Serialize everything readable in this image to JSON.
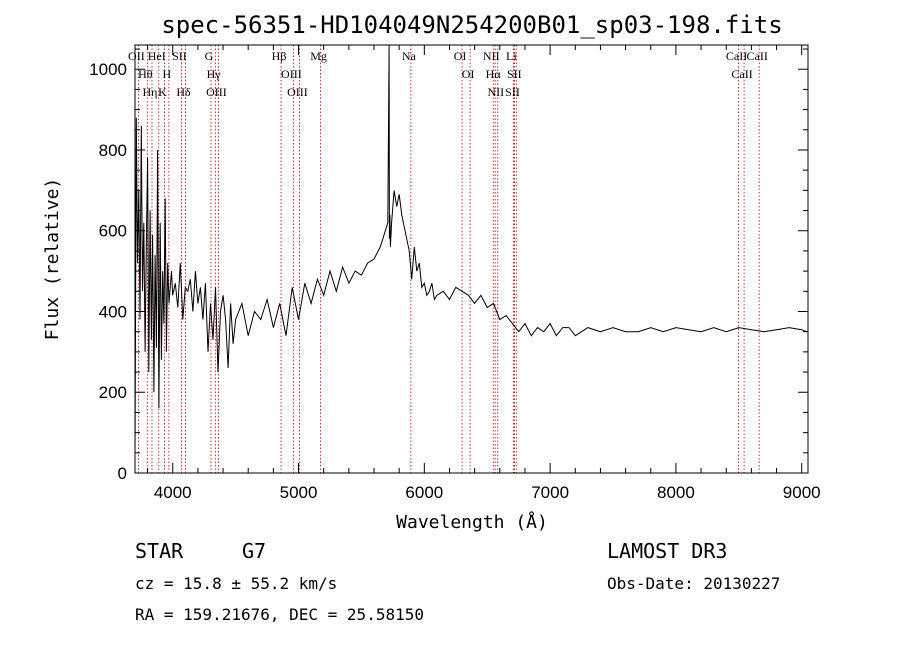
{
  "chart_data": {
    "type": "line",
    "title": "spec-56351-HD104049N254200B01_sp03-198.fits",
    "xlabel": "Wavelength (Å)",
    "ylabel": "Flux (relative)",
    "xlim": [
      3700,
      9050
    ],
    "ylim": [
      0,
      1060
    ],
    "xticks": [
      4000,
      5000,
      6000,
      7000,
      8000,
      9000
    ],
    "yticks": [
      0,
      200,
      400,
      600,
      800,
      1000
    ],
    "grid": false,
    "series": [
      {
        "x": [
          3700,
          3710,
          3720,
          3730,
          3740,
          3750,
          3760,
          3770,
          3780,
          3790,
          3800,
          3810,
          3820,
          3830,
          3840,
          3850,
          3860,
          3870,
          3880,
          3890,
          3900,
          3910,
          3920,
          3930,
          3940,
          3950,
          3960,
          3970,
          3980,
          3990,
          4000,
          4020,
          4040,
          4060,
          4080,
          4100,
          4120,
          4140,
          4160,
          4180,
          4200,
          4220,
          4240,
          4260,
          4280,
          4300,
          4320,
          4340,
          4360,
          4380,
          4400,
          4420,
          4440,
          4460,
          4480,
          4500,
          4550,
          4600,
          4650,
          4700,
          4750,
          4800,
          4850,
          4900,
          4950,
          5000,
          5050,
          5100,
          5150,
          5200,
          5250,
          5300,
          5350,
          5400,
          5450,
          5500,
          5550,
          5600,
          5650,
          5700,
          5710,
          5720,
          5722,
          5726,
          5730,
          5740,
          5760,
          5780,
          5800,
          5820,
          5840,
          5860,
          5880,
          5900,
          5920,
          5940,
          5960,
          5980,
          6000,
          6020,
          6040,
          6060,
          6080,
          6100,
          6150,
          6200,
          6250,
          6300,
          6350,
          6400,
          6450,
          6500,
          6550,
          6600,
          6650,
          6700,
          6750,
          6800,
          6850,
          6900,
          6950,
          7000,
          7050,
          7100,
          7150,
          7200,
          7300,
          7400,
          7500,
          7600,
          7700,
          7800,
          7900,
          8000,
          8100,
          8200,
          8300,
          8400,
          8500,
          8600,
          8700,
          8800,
          8900,
          9000,
          9040
        ],
        "y": [
          40,
          880,
          520,
          700,
          380,
          860,
          450,
          620,
          300,
          560,
          780,
          250,
          650,
          330,
          590,
          200,
          540,
          310,
          800,
          160,
          620,
          280,
          500,
          370,
          680,
          300,
          520,
          420,
          460,
          500,
          440,
          470,
          410,
          520,
          380,
          460,
          450,
          480,
          400,
          500,
          420,
          460,
          380,
          470,
          300,
          420,
          330,
          460,
          250,
          400,
          440,
          380,
          260,
          420,
          320,
          380,
          420,
          340,
          400,
          380,
          430,
          360,
          420,
          340,
          460,
          380,
          470,
          420,
          480,
          440,
          500,
          450,
          510,
          470,
          500,
          490,
          520,
          530,
          560,
          610,
          620,
          1060,
          580,
          640,
          560,
          620,
          700,
          660,
          690,
          640,
          610,
          580,
          550,
          480,
          560,
          500,
          520,
          460,
          470,
          440,
          450,
          470,
          430,
          440,
          450,
          430,
          460,
          450,
          440,
          420,
          440,
          410,
          420,
          380,
          390,
          370,
          350,
          370,
          340,
          360,
          350,
          370,
          340,
          360,
          360,
          340,
          360,
          350,
          360,
          350,
          350,
          360,
          350,
          360,
          355,
          350,
          360,
          350,
          360,
          355,
          350,
          355,
          360,
          355,
          350
        ]
      }
    ],
    "lines": [
      {
        "label": "Hθ",
        "x": 3798
      },
      {
        "label": "OII",
        "x": 3727
      },
      {
        "label": "Hη",
        "x": 3835
      },
      {
        "label": "HeI",
        "x": 3889
      },
      {
        "label": "K",
        "x": 3934
      },
      {
        "label": "H",
        "x": 3969
      },
      {
        "label": "SII",
        "x": 4069
      },
      {
        "label": "Hδ",
        "x": 4102
      },
      {
        "label": "OIII",
        "x": 4363
      },
      {
        "label": "Hγ",
        "x": 4341
      },
      {
        "label": "G",
        "x": 4304
      },
      {
        "label": "Hβ",
        "x": 4861
      },
      {
        "label": "OIII",
        "x": 4959
      },
      {
        "label": "OIII",
        "x": 5007
      },
      {
        "label": "Mg",
        "x": 5175
      },
      {
        "label": "Na",
        "x": 5893
      },
      {
        "label": "OI",
        "x": 6300
      },
      {
        "label": "OI",
        "x": 6364
      },
      {
        "label": "Hα",
        "x": 6563
      },
      {
        "label": "NII",
        "x": 6548
      },
      {
        "label": "NII",
        "x": 6584
      },
      {
        "label": "SII",
        "x": 6717
      },
      {
        "label": "Li",
        "x": 6708
      },
      {
        "label": "SII",
        "x": 6731
      },
      {
        "label": "CaII",
        "x": 8542
      },
      {
        "label": "CaII",
        "x": 8498
      },
      {
        "label": "CaII",
        "x": 8662
      }
    ]
  },
  "info": {
    "object_class": "STAR",
    "subclass": "G7",
    "cz": "cz = 15.8 ± 55.2 km/s",
    "coords": "RA = 159.21676, DEC =  25.58150",
    "survey": "LAMOST DR3",
    "obs_date": "Obs-Date: 20130227"
  },
  "colors": {
    "spectrum": "#000000",
    "line_markers": "#c00000",
    "text": "#000000",
    "background": "#ffffff"
  }
}
